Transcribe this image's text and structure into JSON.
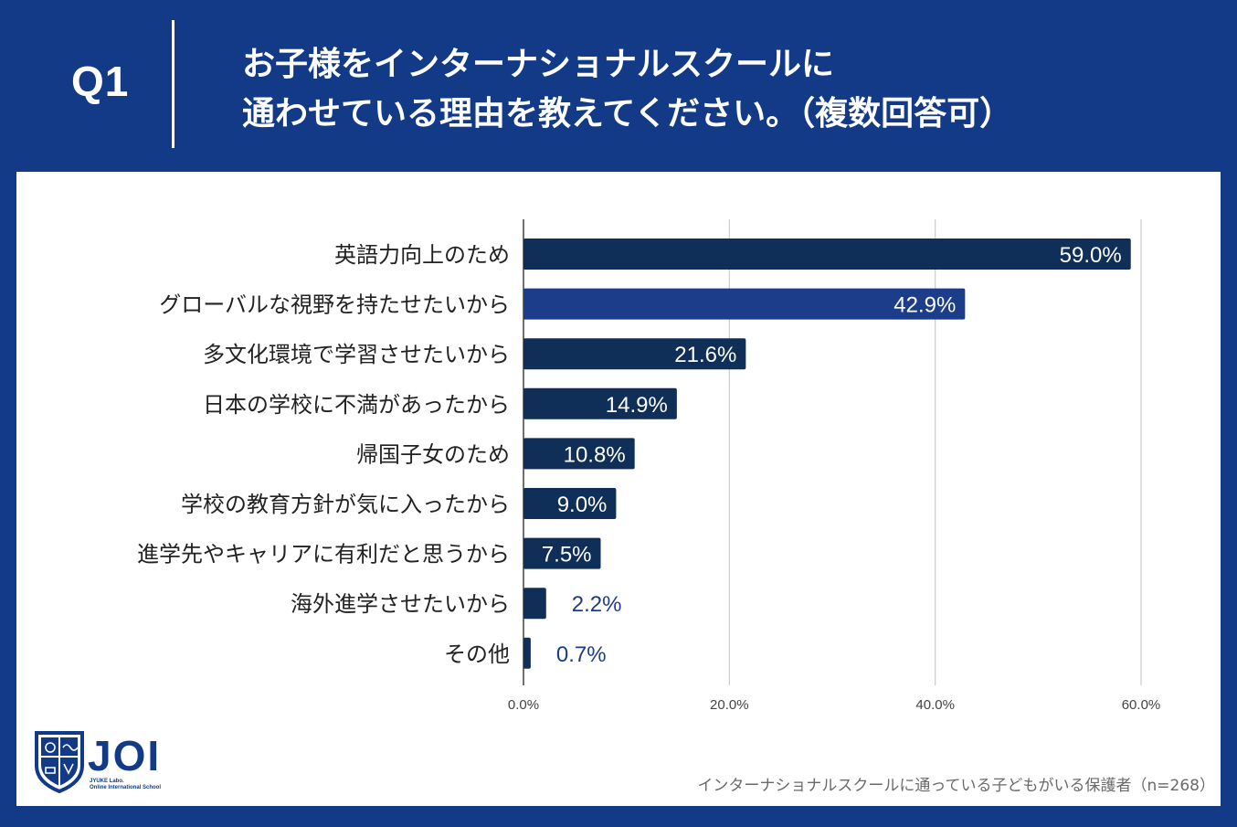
{
  "header": {
    "question_number": "Q1",
    "question_line1": "お子様をインターナショナルスクールに",
    "question_line2": "通わせている理由を教えてください。（複数回答可）"
  },
  "colors": {
    "background": "#123a86",
    "bar_dark": "#0f2f59",
    "bar_highlight": "#1c3d8a",
    "label_outside": "#1c3d8a"
  },
  "chart_data": {
    "type": "bar",
    "orientation": "horizontal",
    "categories": [
      "英語力向上のため",
      "グローバルな視野を持たせたいから",
      "多文化環境で学習させたいから",
      "日本の学校に不満があったから",
      "帰国子女のため",
      "学校の教育方針が気に入ったから",
      "進学先やキャリアに有利だと思うから",
      "海外進学させたいから",
      "その他"
    ],
    "values": [
      59.0,
      42.9,
      21.6,
      14.9,
      10.8,
      9.0,
      7.5,
      2.2,
      0.7
    ],
    "value_labels": [
      "59.0%",
      "42.9%",
      "21.6%",
      "14.9%",
      "10.8%",
      "9.0%",
      "7.5%",
      "2.2%",
      "0.7%"
    ],
    "highlight_index": 1,
    "xlim": [
      0,
      60
    ],
    "xticks": [
      0,
      20,
      40,
      60
    ],
    "xtick_labels": [
      "0.0%",
      "20.0%",
      "40.0%",
      "60.0%"
    ],
    "grid": true,
    "title": "",
    "xlabel": "",
    "ylabel": ""
  },
  "logo": {
    "text": "JOI",
    "sub_line1": "JYUKE Labo.",
    "sub_line2": "Online International School"
  },
  "footnote": "インターナショナルスクールに通っている子どもがいる保護者（n=268）"
}
